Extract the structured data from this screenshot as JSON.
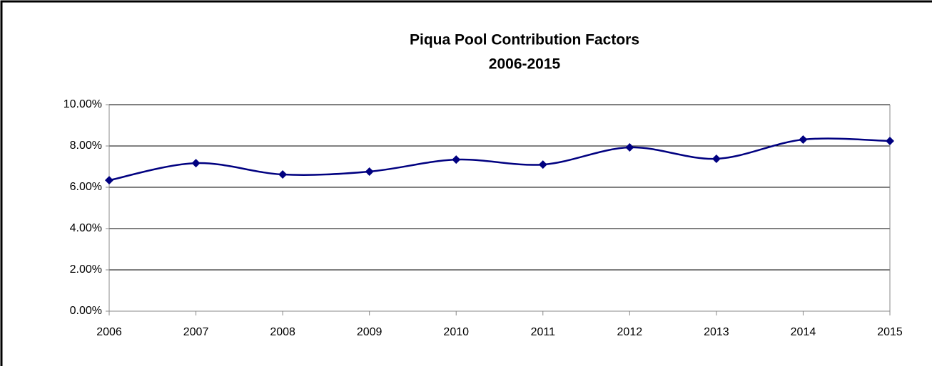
{
  "chart_data": {
    "type": "line",
    "title": "Piqua Pool Contribution Factors",
    "subtitle": "2006-2015",
    "categories": [
      "2006",
      "2007",
      "2008",
      "2009",
      "2010",
      "2011",
      "2012",
      "2013",
      "2014",
      "2015"
    ],
    "series": [
      {
        "color": "#000080",
        "values": [
          6.34,
          7.17,
          6.62,
          6.76,
          7.34,
          7.1,
          7.93,
          7.38,
          8.31,
          8.24
        ]
      }
    ],
    "smooth": true,
    "ylim": [
      0,
      10
    ],
    "yticks": [
      {
        "value": 0,
        "label": "0.00%"
      },
      {
        "value": 2,
        "label": "2.00%"
      },
      {
        "value": 4,
        "label": "4.00%"
      },
      {
        "value": 6,
        "label": "6.00%"
      },
      {
        "value": 8,
        "label": "8.00%"
      },
      {
        "value": 10,
        "label": "10.00%"
      }
    ],
    "grid": true
  }
}
